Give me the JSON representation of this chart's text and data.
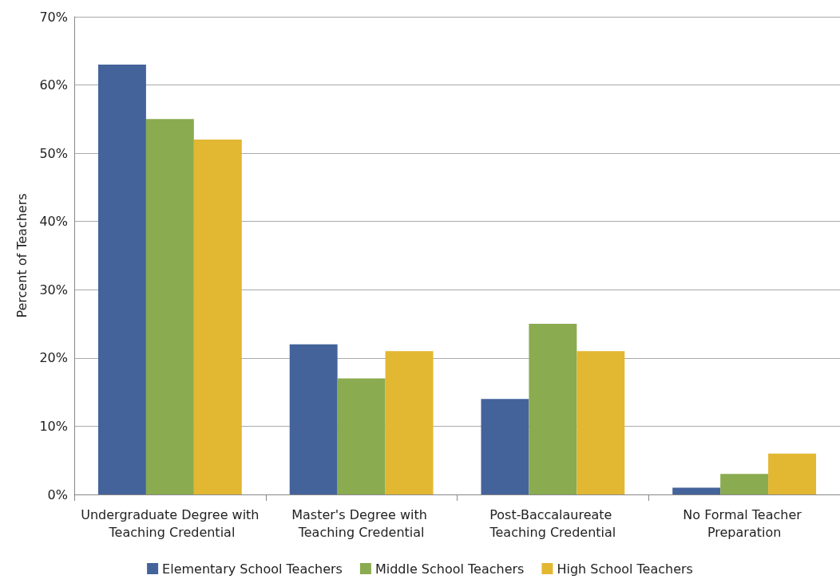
{
  "chart_data": {
    "type": "bar",
    "ylabel": "Percent of Teachers",
    "categories": [
      "Undergraduate Degree with Teaching Credential",
      "Master's Degree with Teaching Credential",
      "Post-Baccalaureate Teaching Credential",
      "No Formal Teacher Preparation"
    ],
    "series": [
      {
        "name": "Elementary School Teachers",
        "color": "#44639b",
        "values": [
          63,
          22,
          14,
          1
        ]
      },
      {
        "name": "Middle School Teachers",
        "color": "#8aab4f",
        "values": [
          55,
          17,
          25,
          3
        ]
      },
      {
        "name": "High School Teachers",
        "color": "#e2b732",
        "values": [
          52,
          21,
          21,
          6
        ]
      }
    ],
    "ylim": [
      0,
      70
    ],
    "yticks": [
      {
        "value": 0,
        "label": "0%"
      },
      {
        "value": 10,
        "label": "10%"
      },
      {
        "value": 20,
        "label": "20%"
      },
      {
        "value": 30,
        "label": "30%"
      },
      {
        "value": 40,
        "label": "40%"
      },
      {
        "value": 50,
        "label": "50%"
      },
      {
        "value": 60,
        "label": "60%"
      },
      {
        "value": 70,
        "label": "70%"
      }
    ],
    "grid": "y",
    "legend": "bottom"
  }
}
